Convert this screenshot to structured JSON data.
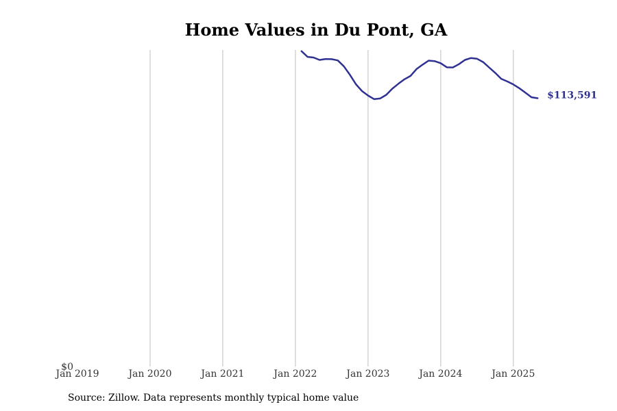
{
  "chart_data": {
    "type": "line",
    "title": "Home Values in Du Pont, GA",
    "xlabel": "",
    "ylabel": "",
    "x_ticks": [
      "Jan 2019",
      "Jan 2020",
      "Jan 2021",
      "Jan 2022",
      "Jan 2023",
      "Jan 2024",
      "Jan 2025"
    ],
    "y_ticks": [
      "$0"
    ],
    "y_tick_values": [
      0
    ],
    "xlim": [
      "2019-01",
      "2025-06"
    ],
    "ylim": [
      0,
      134000
    ],
    "grid": "vertical",
    "line_color": "#2e3192",
    "end_label": "$113,591",
    "series": [
      {
        "x": [
          "2022-02",
          "2022-03",
          "2022-04",
          "2022-05",
          "2022-06",
          "2022-07",
          "2022-08",
          "2022-09",
          "2022-10",
          "2022-11",
          "2022-12",
          "2023-01",
          "2023-02",
          "2023-03",
          "2023-04",
          "2023-05",
          "2023-06",
          "2023-07",
          "2023-08",
          "2023-09",
          "2023-10",
          "2023-11",
          "2023-12",
          "2024-01",
          "2024-02",
          "2024-03",
          "2024-04",
          "2024-05",
          "2024-06",
          "2024-07",
          "2024-08",
          "2024-09",
          "2024-10",
          "2024-11",
          "2024-12",
          "2025-01",
          "2025-02",
          "2025-03",
          "2025-04",
          "2025-05"
        ],
        "values": [
          133500,
          131100,
          130800,
          129800,
          130200,
          130100,
          129600,
          127100,
          123500,
          119500,
          116600,
          114700,
          113200,
          113500,
          115000,
          117600,
          119700,
          121600,
          123000,
          125900,
          127800,
          129500,
          129300,
          128400,
          126700,
          126600,
          128000,
          129800,
          130600,
          130300,
          128900,
          126600,
          124300,
          121800,
          120700,
          119400,
          117800,
          115900,
          114000,
          113591
        ]
      }
    ]
  },
  "source_note": "Source: Zillow. Data represents monthly typical home value"
}
